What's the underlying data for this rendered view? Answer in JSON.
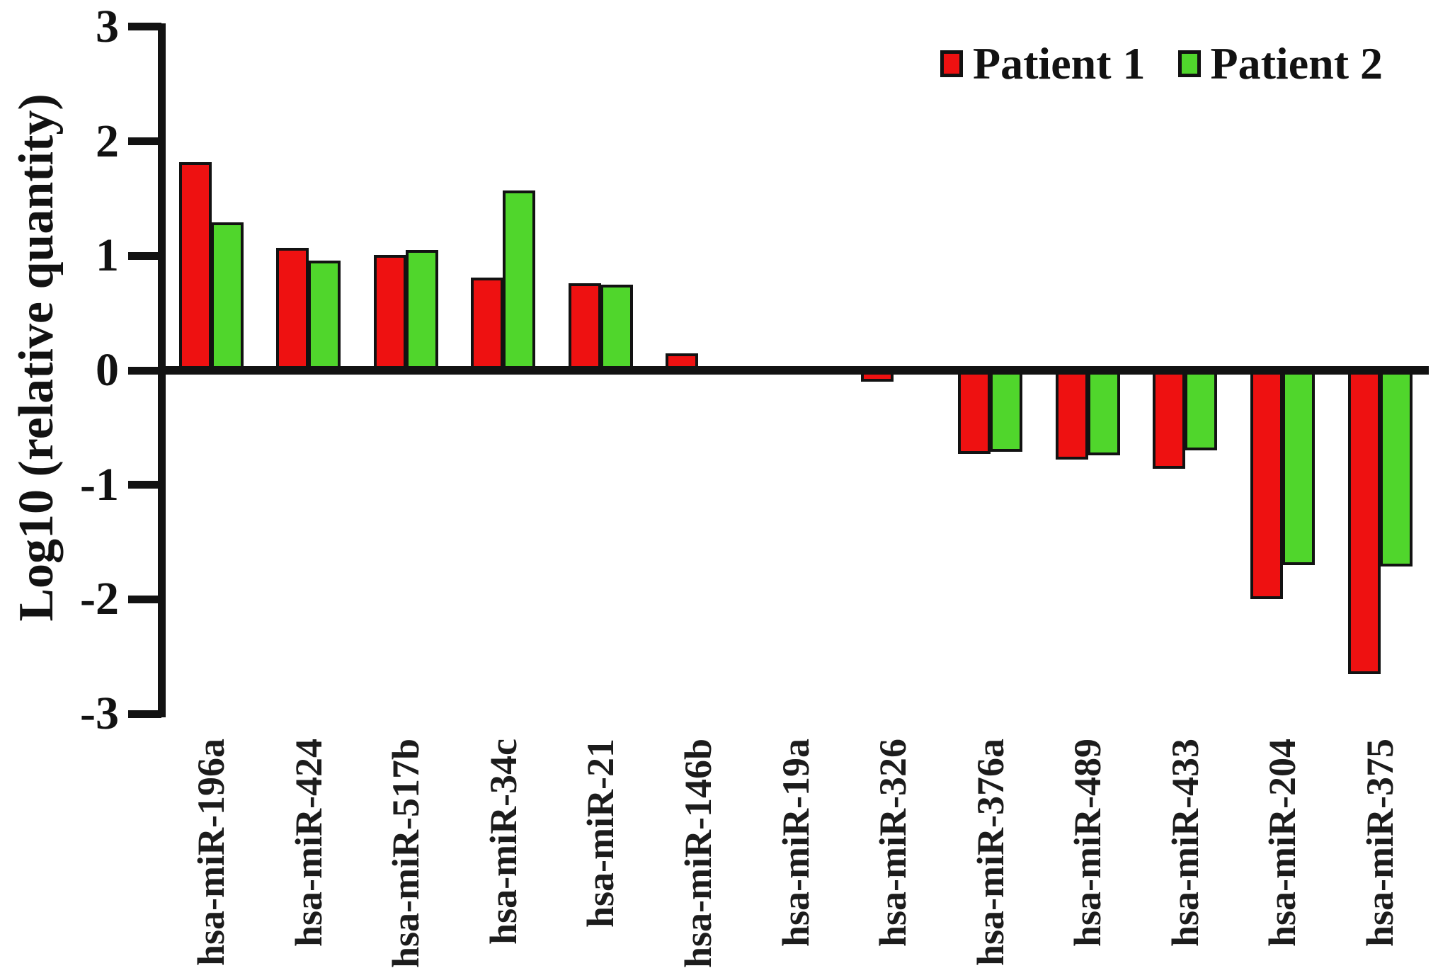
{
  "figure": {
    "background": "#ffffff",
    "axis_color": "#121212"
  },
  "legend": {
    "position": "top-right",
    "items": [
      {
        "label": "Patient 1",
        "color": "#ee1111"
      },
      {
        "label": "Patient 2",
        "color": "#50d62c"
      }
    ]
  },
  "chart_data": {
    "type": "bar",
    "title": "",
    "xlabel": "",
    "ylabel": "Log10 (relative quantity)",
    "ylim": [
      -3,
      3
    ],
    "yticks": [
      "3",
      "2",
      "1",
      "0",
      "-1",
      "-2",
      "-3"
    ],
    "grid": false,
    "legend_position": "top-right",
    "categories": [
      "hsa-miR-196a",
      "hsa-miR-424",
      "hsa-miR-517b",
      "hsa-miR-34c",
      "hsa-miR-21",
      "hsa-miR-146b",
      "hsa-miR-19a",
      "hsa-miR-326",
      "hsa-miR-376a",
      "hsa-miR-489",
      "hsa-miR-433",
      "hsa-miR-204",
      "hsa-miR-375"
    ],
    "series": [
      {
        "name": "Patient 1",
        "color": "#ee1111",
        "values": [
          1.82,
          1.07,
          1.01,
          0.81,
          0.76,
          0.15,
          0,
          -0.1,
          -0.73,
          -0.78,
          -0.86,
          -2.0,
          -2.65
        ]
      },
      {
        "name": "Patient 2",
        "color": "#50d62c",
        "values": [
          1.29,
          0.96,
          1.05,
          1.57,
          0.75,
          0,
          0,
          0,
          -0.71,
          -0.74,
          -0.7,
          -1.7,
          -1.71
        ]
      }
    ]
  }
}
